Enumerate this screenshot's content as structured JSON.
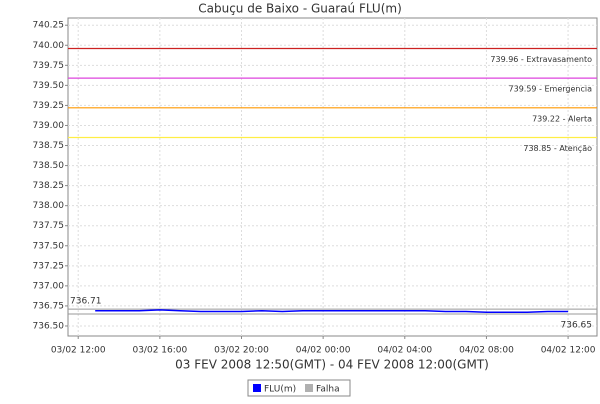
{
  "chart_data": {
    "type": "line",
    "title": "Cabuçu de Baixo - Guaraú FLU(m)",
    "xlabel": "03 FEV 2008 12:50(GMT) - 04 FEV 2008 12:00(GMT)",
    "x": [
      "2008-02-03T12:50",
      "2008-02-03T14:00",
      "2008-02-03T15:00",
      "2008-02-03T16:00",
      "2008-02-03T17:00",
      "2008-02-03T18:00",
      "2008-02-03T19:00",
      "2008-02-03T20:00",
      "2008-02-03T21:00",
      "2008-02-03T22:00",
      "2008-02-03T23:00",
      "2008-02-04T00:00",
      "2008-02-04T01:00",
      "2008-02-04T02:00",
      "2008-02-04T03:00",
      "2008-02-04T04:00",
      "2008-02-04T05:00",
      "2008-02-04T06:00",
      "2008-02-04T07:00",
      "2008-02-04T08:00",
      "2008-02-04T09:00",
      "2008-02-04T10:00",
      "2008-02-04T11:00",
      "2008-02-04T12:00"
    ],
    "series": [
      {
        "name": "FLU(m)",
        "color": "#0000ff",
        "values": [
          736.69,
          736.69,
          736.69,
          736.7,
          736.69,
          736.68,
          736.68,
          736.68,
          736.69,
          736.68,
          736.69,
          736.69,
          736.69,
          736.69,
          736.69,
          736.69,
          736.69,
          736.68,
          736.68,
          736.67,
          736.67,
          736.67,
          736.68,
          736.68
        ]
      },
      {
        "name": "Falha",
        "color": "#b0b0b0",
        "values": [
          null,
          null,
          null,
          null,
          null,
          null,
          null,
          null,
          null,
          null,
          null,
          null,
          null,
          null,
          null,
          null,
          null,
          null,
          null,
          null,
          null,
          null,
          null,
          null
        ]
      }
    ],
    "thresholds": [
      {
        "value": 739.96,
        "label": "739.96 - Extravasamento",
        "color": "#cc2222"
      },
      {
        "value": 739.59,
        "label": "739.59 - Emergencia",
        "color": "#dd44dd"
      },
      {
        "value": 739.22,
        "label": "739.22 - Alerta",
        "color": "#ff9900"
      },
      {
        "value": 738.85,
        "label": "738.85 - Atenção",
        "color": "#ffee44"
      }
    ],
    "max_line": 736.71,
    "min_line": 736.65,
    "xlim": [
      "2008-02-03T11:30",
      "2008-02-04T13:25"
    ],
    "xticks": [
      {
        "value": "2008-02-03T12:00",
        "label": "03/02 12:00"
      },
      {
        "value": "2008-02-03T16:00",
        "label": "03/02 16:00"
      },
      {
        "value": "2008-02-03T20:00",
        "label": "03/02 20:00"
      },
      {
        "value": "2008-02-04T00:00",
        "label": "04/02 00:00"
      },
      {
        "value": "2008-02-04T04:00",
        "label": "04/02 04:00"
      },
      {
        "value": "2008-02-04T08:00",
        "label": "04/02 08:00"
      },
      {
        "value": "2008-02-04T12:00",
        "label": "04/02 12:00"
      }
    ],
    "ylim": [
      736.375,
      740.34
    ],
    "yticks": [
      {
        "value": 736.5,
        "label": "736.50"
      },
      736.75,
      {
        "value": 737,
        "label": "737.00"
      },
      737.25,
      {
        "value": 737.5,
        "label": "737.50"
      },
      737.75,
      {
        "value": 738,
        "label": "738.00"
      },
      738.25,
      {
        "value": 738.5,
        "label": "738.50"
      },
      738.75,
      {
        "value": 739,
        "label": "739.00"
      },
      739.25,
      {
        "value": 739.5,
        "label": "739.50"
      },
      739.75,
      {
        "value": 740,
        "label": "740.00"
      },
      740.25
    ],
    "grid": true
  }
}
